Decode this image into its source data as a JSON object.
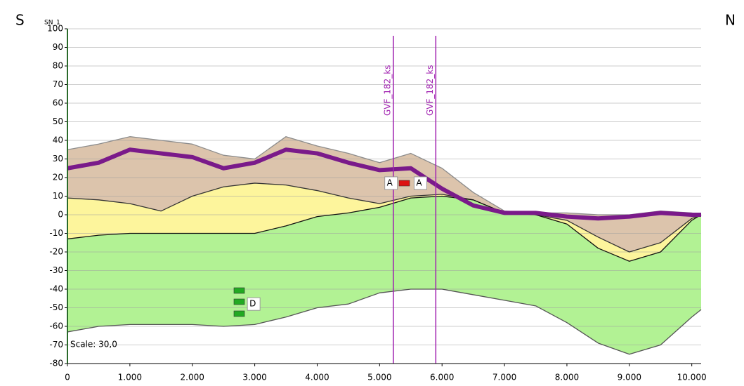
{
  "chart_data": {
    "type": "profile",
    "title": "SN_1",
    "left_label": "S",
    "right_label": "N",
    "annotation": "Scale: 30,0",
    "x": [
      0,
      500,
      1000,
      1500,
      2000,
      2500,
      3000,
      3500,
      4000,
      4500,
      5000,
      5500,
      6000,
      6500,
      7000,
      7500,
      8000,
      8500,
      9000,
      9500,
      10000,
      10150
    ],
    "series": [
      {
        "color": "#8c8c8c",
        "fill": "#dcc4ac",
        "values": [
          35,
          38,
          42,
          40,
          38,
          32,
          30,
          42,
          37,
          33,
          28,
          33,
          25,
          12,
          2,
          1,
          1,
          0,
          0,
          2,
          1,
          0
        ]
      },
      {
        "color": "#333333",
        "fill": "#fdf59c",
        "values": [
          9,
          8,
          6,
          2,
          10,
          15,
          17,
          16,
          13,
          9,
          6,
          10,
          11,
          8,
          1,
          0,
          -3,
          -12,
          -20,
          -15,
          -2,
          0
        ]
      },
      {
        "color": "#111111",
        "fill": "#b2f294",
        "values": [
          -13,
          -11,
          -10,
          -10,
          -10,
          -10,
          -10,
          -6,
          -1,
          1,
          4,
          9,
          10,
          8,
          1,
          0,
          -5,
          -18,
          -25,
          -20,
          -3,
          0
        ]
      },
      {
        "color": "#555555",
        "values": [
          -63,
          -60,
          -59,
          -59,
          -59,
          -60,
          -59,
          -55,
          -50,
          -48,
          -42,
          -40,
          -40,
          -43,
          -46,
          -49,
          -58,
          -69,
          -75,
          -70,
          -55,
          -51
        ]
      },
      {
        "color": "#7a1a8a",
        "line_width": 6,
        "values": [
          25,
          28,
          35,
          33,
          31,
          25,
          28,
          35,
          33,
          28,
          24,
          25,
          14,
          5,
          1,
          1,
          -1,
          -2,
          -1,
          1,
          0,
          0
        ]
      }
    ],
    "markers": [
      {
        "x": 5220,
        "label": "GVF_182_ks"
      },
      {
        "x": 5900,
        "label": "GVF_182_ks"
      }
    ],
    "marker_color": "#a020b0",
    "points": [
      {
        "x": 5150,
        "y": 17,
        "label": "A"
      },
      {
        "x": 5620,
        "y": 17,
        "label": "A"
      },
      {
        "x": 2950,
        "y": -48,
        "label": "D"
      }
    ],
    "xlim": [
      0,
      10150
    ],
    "ylim": [
      -80,
      100
    ],
    "xticks": [
      0,
      {
        "value": 1000,
        "label": "1.000"
      },
      {
        "value": 2000,
        "label": "2.000"
      },
      {
        "value": 3000,
        "label": "3.000"
      },
      {
        "value": 4000,
        "label": "4.000"
      },
      {
        "value": 5000,
        "label": "5.000"
      },
      {
        "value": 6000,
        "label": "6.000"
      },
      {
        "value": 7000,
        "label": "7.000"
      },
      {
        "value": 8000,
        "label": "8.000"
      },
      {
        "value": 9000,
        "label": "9.000"
      },
      {
        "value": 10000,
        "label": "10.000"
      }
    ],
    "yticks": [
      -80,
      -70,
      -60,
      -50,
      -40,
      -30,
      -20,
      -10,
      0,
      10,
      20,
      30,
      40,
      50,
      60,
      70,
      80,
      90,
      100
    ],
    "grid": true
  }
}
